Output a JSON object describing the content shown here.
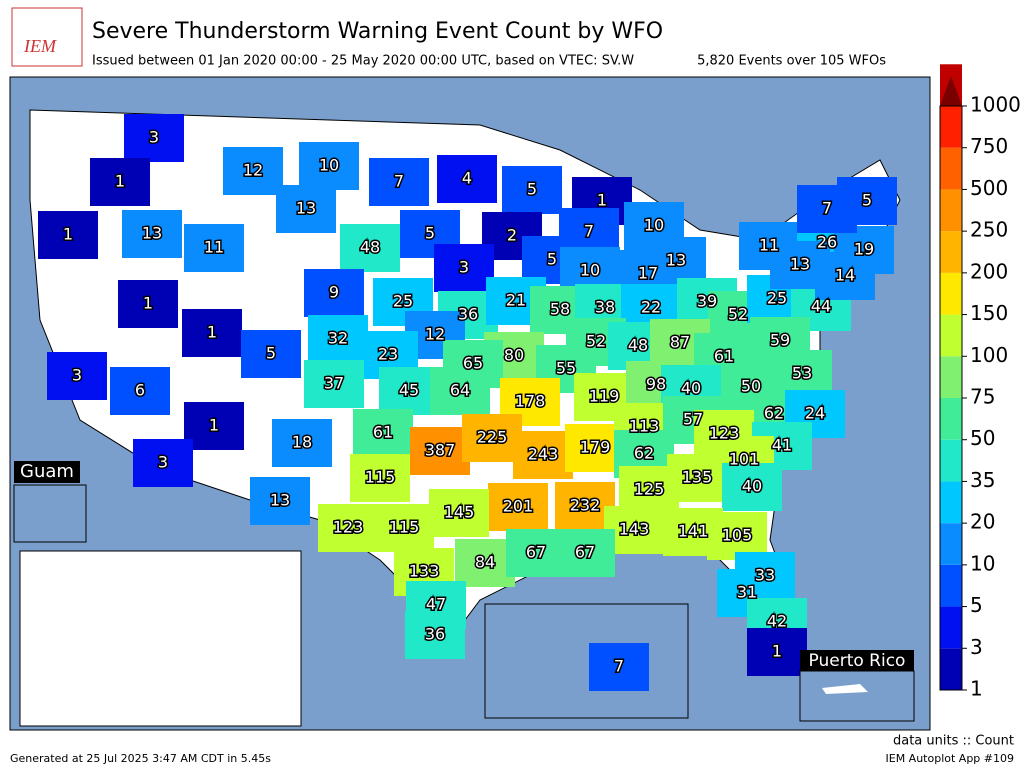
{
  "header": {
    "logo": "IEM",
    "title": "Severe Thunderstorm Warning Event Count by WFO",
    "subtitle": "Issued between 01 Jan 2020 00:00 - 25 May 2020 00:00 UTC, based on VTEC: SV.W",
    "summary": "5,820 Events over 105 WFOs"
  },
  "map": {
    "insets": {
      "guam": "Guam",
      "puerto_rico": "Puerto Rico"
    },
    "labels": [
      3,
      1,
      1,
      13,
      11,
      12,
      10,
      13,
      7,
      4,
      5,
      1,
      10,
      7,
      2,
      5,
      48,
      3,
      5,
      10,
      17,
      13,
      9,
      25,
      36,
      21,
      58,
      38,
      22,
      39,
      52,
      25,
      44,
      11,
      26,
      19,
      13,
      14,
      7,
      5,
      1,
      1,
      5,
      32,
      12,
      23,
      80,
      55,
      52,
      48,
      87,
      61,
      59,
      53,
      3,
      6,
      37,
      45,
      64,
      65,
      178,
      119,
      98,
      40,
      50,
      62,
      24,
      1,
      3,
      18,
      61,
      387,
      225,
      243,
      179,
      113,
      57,
      123,
      41,
      101,
      62,
      135,
      40,
      115,
      125,
      13,
      201,
      232,
      123,
      115,
      145,
      143,
      141,
      105,
      133,
      84,
      67,
      67,
      33,
      31,
      47,
      42,
      36,
      7,
      1
    ]
  },
  "colorbar": {
    "ticks": [
      1,
      3,
      5,
      10,
      20,
      35,
      50,
      75,
      100,
      150,
      200,
      250,
      500,
      750,
      1000
    ],
    "colors": [
      "#0000b4",
      "#0010f0",
      "#0050ff",
      "#0a8cff",
      "#00c8ff",
      "#20e8c8",
      "#40ec98",
      "#80f070",
      "#c0ff30",
      "#ffe800",
      "#ffb400",
      "#ff9000",
      "#ff6000",
      "#ff2000",
      "#c00000"
    ],
    "over_color": "#7a0000"
  },
  "footer": {
    "units": "data units :: Count",
    "generated": "Generated at 25 Jul 2025 3:47 AM CDT in 5.45s",
    "app": "IEM Autoplot App #109"
  }
}
